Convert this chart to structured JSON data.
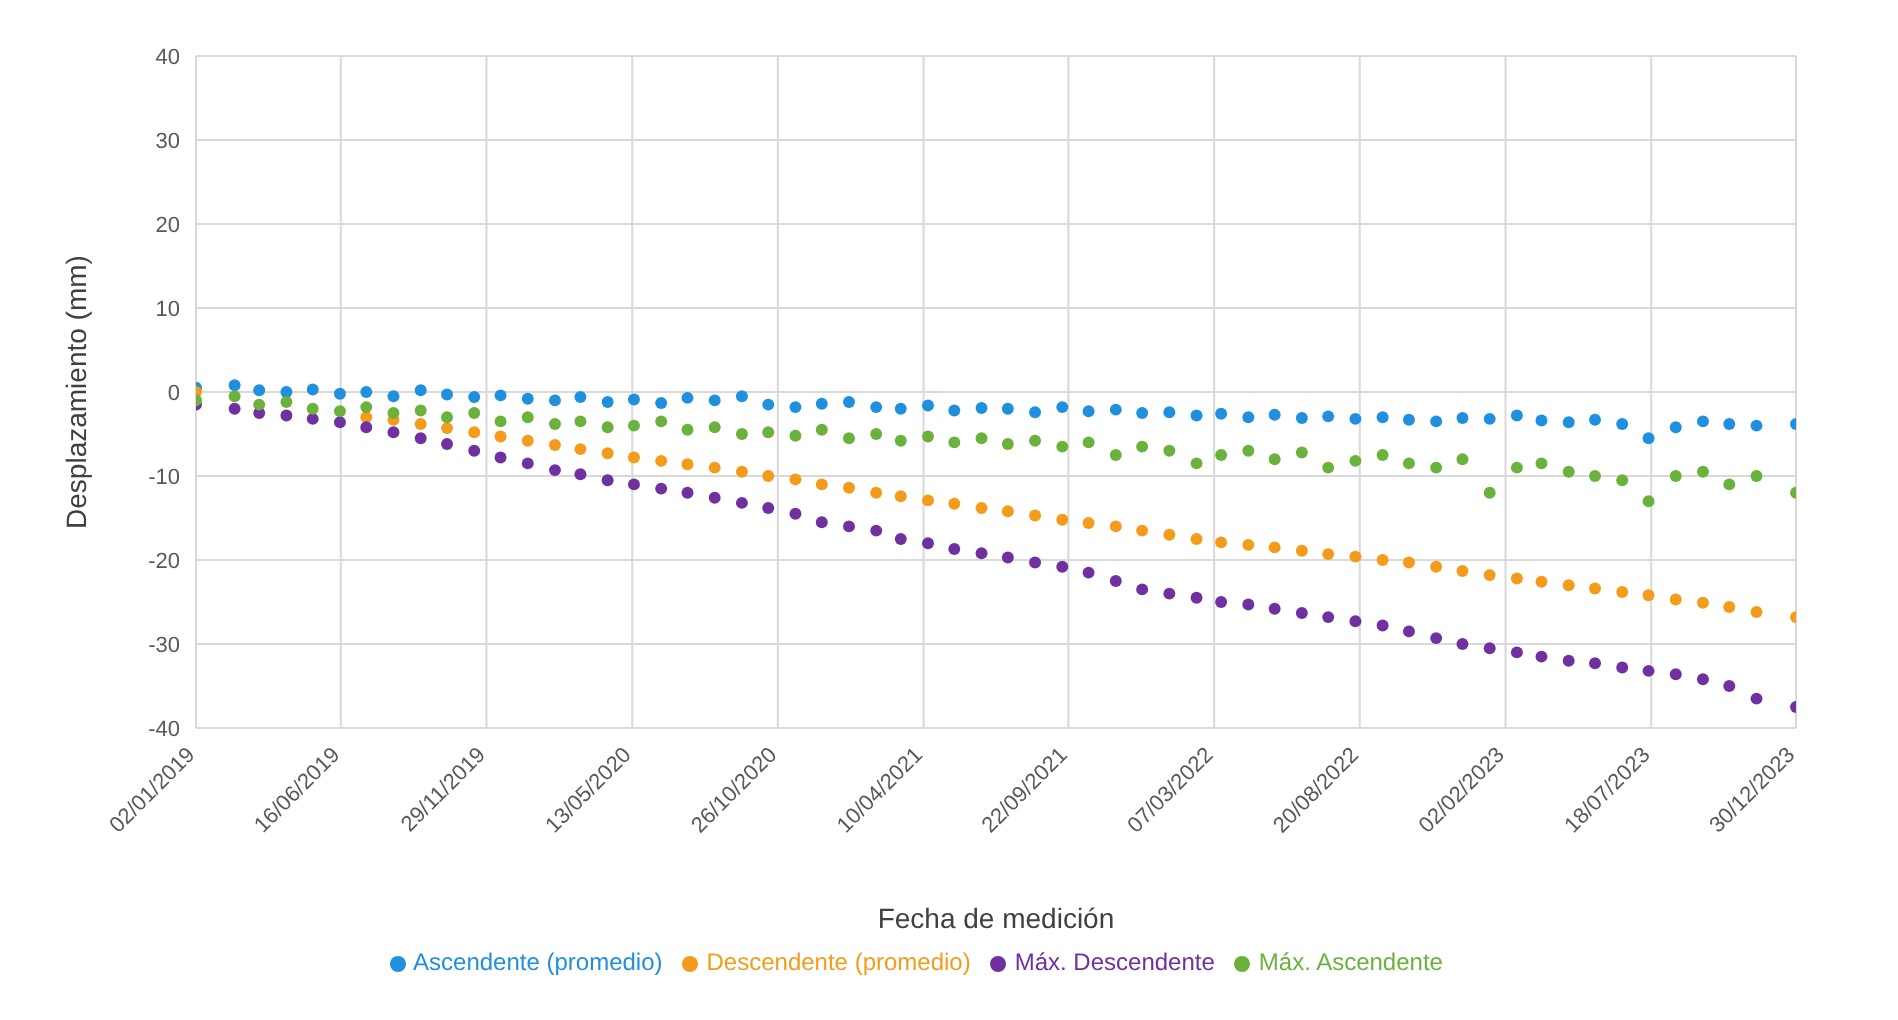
{
  "chart_data": {
    "type": "scatter",
    "xlabel": "Fecha de medición",
    "ylabel": "Desplazamiento (mm)",
    "x": [
      "2019-01-02",
      "2019-02-15",
      "2019-03-15",
      "2019-04-15",
      "2019-05-15",
      "2019-06-15",
      "2019-07-15",
      "2019-08-15",
      "2019-09-15",
      "2019-10-15",
      "2019-11-15",
      "2019-12-15",
      "2020-01-15",
      "2020-02-15",
      "2020-03-15",
      "2020-04-15",
      "2020-05-15",
      "2020-06-15",
      "2020-07-15",
      "2020-08-15",
      "2020-09-15",
      "2020-10-15",
      "2020-11-15",
      "2020-12-15",
      "2021-01-15",
      "2021-02-15",
      "2021-03-15",
      "2021-04-15",
      "2021-05-15",
      "2021-06-15",
      "2021-07-15",
      "2021-08-15",
      "2021-09-15",
      "2021-10-15",
      "2021-11-15",
      "2021-12-15",
      "2022-01-15",
      "2022-02-15",
      "2022-03-15",
      "2022-04-15",
      "2022-05-15",
      "2022-06-15",
      "2022-07-15",
      "2022-08-15",
      "2022-09-15",
      "2022-10-15",
      "2022-11-15",
      "2022-12-15",
      "2023-01-15",
      "2023-02-15",
      "2023-03-15",
      "2023-04-15",
      "2023-05-15",
      "2023-06-15",
      "2023-07-15",
      "2023-08-15",
      "2023-09-15",
      "2023-10-15",
      "2023-11-15",
      "2023-12-30"
    ],
    "series": [
      {
        "name": "Ascendente (promedio)",
        "color": "#1f8fe0",
        "values": [
          0.5,
          0.8,
          0.2,
          0,
          0.3,
          -0.2,
          0,
          -0.5,
          0.2,
          -0.3,
          -0.6,
          -0.4,
          -0.8,
          -1,
          -0.6,
          -1.2,
          -0.9,
          -1.3,
          -0.7,
          -1,
          -0.5,
          -1.5,
          -1.8,
          -1.4,
          -1.2,
          -1.8,
          -2,
          -1.6,
          -2.2,
          -1.9,
          -2,
          -2.4,
          -1.8,
          -2.3,
          -2.1,
          -2.5,
          -2.4,
          -2.8,
          -2.6,
          -3,
          -2.7,
          -3.1,
          -2.9,
          -3.2,
          -3,
          -3.3,
          -3.5,
          -3.1,
          -3.2,
          -2.8,
          -3.4,
          -3.6,
          -3.3,
          -3.8,
          -5.5,
          -4.2,
          -3.5,
          -3.8,
          -4,
          -3.8
        ]
      },
      {
        "name": "Descendente (promedio)",
        "color": "#f59b1a",
        "values": [
          0,
          null,
          null,
          null,
          null,
          null,
          -3,
          -3.3,
          -3.8,
          -4.3,
          -4.8,
          -5.3,
          -5.8,
          -6.3,
          -6.8,
          -7.3,
          -7.8,
          -8.2,
          -8.6,
          -9,
          -9.5,
          -10,
          -10.4,
          -11,
          -11.4,
          -12,
          -12.4,
          -12.9,
          -13.3,
          -13.8,
          -14.2,
          -14.7,
          -15.2,
          -15.6,
          -16,
          -16.5,
          -17,
          -17.5,
          -17.9,
          -18.2,
          -18.5,
          -18.9,
          -19.3,
          -19.6,
          -20,
          -20.3,
          -20.8,
          -21.3,
          -21.8,
          -22.2,
          -22.6,
          -23,
          -23.4,
          -23.8,
          -24.2,
          -24.7,
          -25.1,
          -25.6,
          -26.2,
          -26.8
        ]
      },
      {
        "name": "Máx. Descendente",
        "color": "#7030a0",
        "values": [
          -1.5,
          -2,
          -2.5,
          -2.8,
          -3.2,
          -3.6,
          -4.2,
          -4.8,
          -5.5,
          -6.2,
          -7,
          -7.8,
          -8.5,
          -9.3,
          -9.8,
          -10.5,
          -11,
          -11.5,
          -12,
          -12.6,
          -13.2,
          -13.8,
          -14.5,
          -15.5,
          -16,
          -16.5,
          -17.5,
          -18,
          -18.7,
          -19.2,
          -19.7,
          -20.3,
          -20.8,
          -21.5,
          -22.5,
          -23.5,
          -24,
          -24.5,
          -25,
          -25.3,
          -25.8,
          -26.3,
          -26.8,
          -27.3,
          -27.8,
          -28.5,
          -29.3,
          -30,
          -30.5,
          -31,
          -31.5,
          -32,
          -32.3,
          -32.8,
          -33.2,
          -33.6,
          -34.2,
          -35,
          -36.5,
          -37.5
        ]
      },
      {
        "name": "Máx. Ascendente",
        "color": "#6ab23c",
        "values": [
          -1,
          -0.5,
          -1.5,
          -1.2,
          -2,
          -2.3,
          -1.8,
          -2.5,
          -2.2,
          -3,
          -2.5,
          -3.5,
          -3,
          -3.8,
          -3.5,
          -4.2,
          -4,
          -3.5,
          -4.5,
          -4.2,
          -5,
          -4.8,
          -5.2,
          -4.5,
          -5.5,
          -5,
          -5.8,
          -5.3,
          -6,
          -5.5,
          -6.2,
          -5.8,
          -6.5,
          -6,
          -7.5,
          -6.5,
          -7,
          -8.5,
          -7.5,
          -7,
          -8,
          -7.2,
          -9,
          -8.2,
          -7.5,
          -8.5,
          -9,
          -8,
          -12,
          -9,
          -8.5,
          -9.5,
          -10,
          -10.5,
          -13,
          -10,
          -9.5,
          -11,
          -10,
          -12
        ]
      }
    ],
    "xlim": [
      "2019-01-02",
      "2023-12-30"
    ],
    "xticks": [
      {
        "value": "2019-01-02",
        "label": "02/01/2019"
      },
      {
        "value": "2019-06-16",
        "label": "16/06/2019"
      },
      {
        "value": "2019-11-29",
        "label": "29/11/2019"
      },
      {
        "value": "2020-05-13",
        "label": "13/05/2020"
      },
      {
        "value": "2020-10-26",
        "label": "26/10/2020"
      },
      {
        "value": "2021-04-10",
        "label": "10/04/2021"
      },
      {
        "value": "2021-09-22",
        "label": "22/09/2021"
      },
      {
        "value": "2022-03-07",
        "label": "07/03/2022"
      },
      {
        "value": "2022-08-20",
        "label": "20/08/2022"
      },
      {
        "value": "2023-02-02",
        "label": "02/02/2023"
      },
      {
        "value": "2023-07-18",
        "label": "18/07/2023"
      },
      {
        "value": "2023-12-30",
        "label": "30/12/2023"
      }
    ],
    "ylim": [
      -40,
      40
    ],
    "yticks": [
      -40,
      -30,
      -20,
      -10,
      0,
      10,
      20,
      30,
      40
    ],
    "grid": true,
    "legend": "bottom",
    "marker": "circle"
  }
}
